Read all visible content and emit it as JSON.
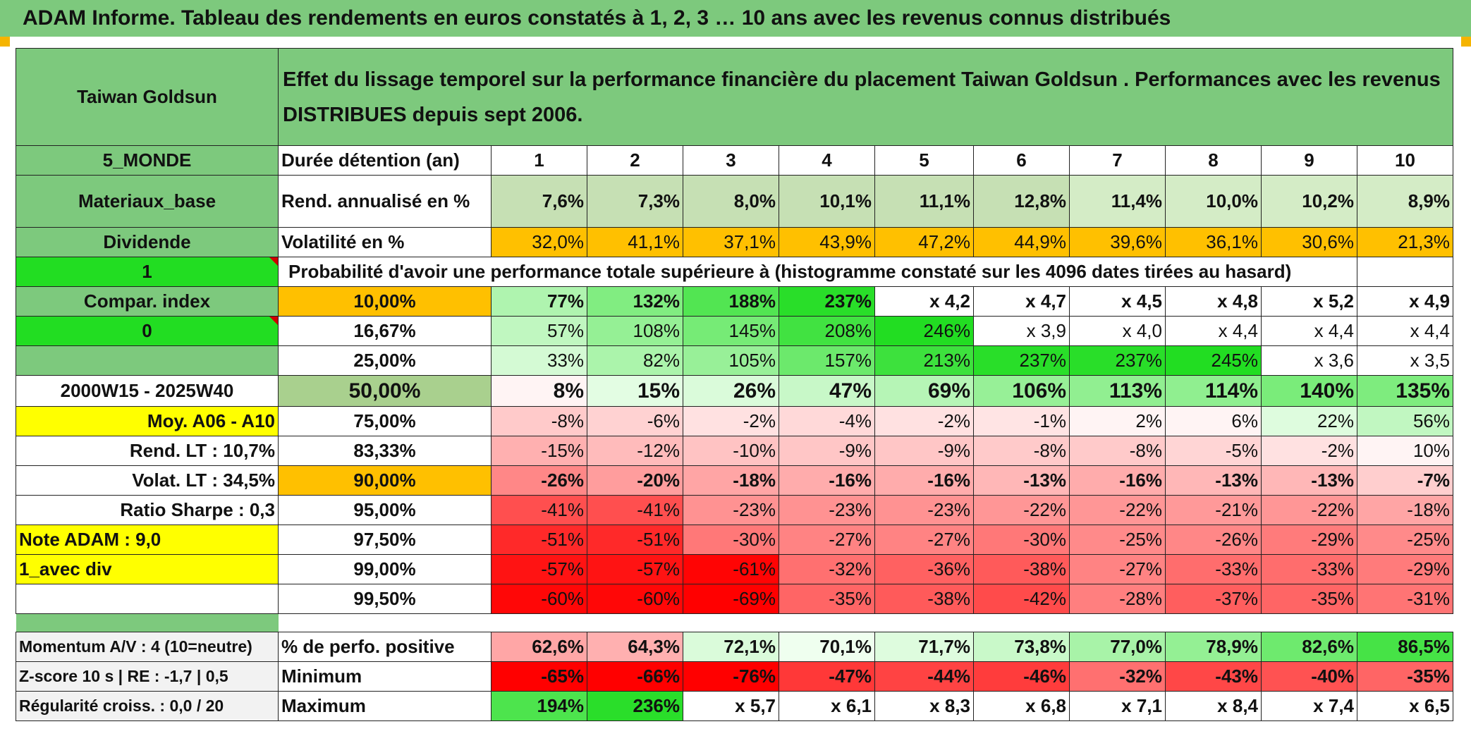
{
  "title": "ADAM Informe. Tableau des rendements en euros constatés à 1, 2, 3 … 10 ans avec les revenus connus distribués",
  "header": {
    "fund_name": "Taiwan Goldsun",
    "description": "Effet du lissage temporel sur la performance financière du placement Taiwan Goldsun . Performances avec les revenus DISTRIBUES depuis sept 2006."
  },
  "left_labels": {
    "region": "5_MONDE",
    "sector": "Materiaux_base",
    "dividend": "Dividende",
    "flag1": "1",
    "compar": "Compar. index",
    "flag0": "0",
    "period": "2000W15 - 2025W40",
    "moy": "Moy. A06 - A10",
    "rend_lt": "Rend. LT :   10,7%",
    "volat_lt": "Volat. LT :   34,5%",
    "sharpe": "Ratio Sharpe :    0,3",
    "note": "Note ADAM : 9,0",
    "avec_div": "1_avec div",
    "momentum": "Momentum A/V : 4 (10=neutre)",
    "zscore": "Z-score 10 s | RE : -1,7 | 0,5",
    "regularite": "Régularité croiss. : 0,0 / 20"
  },
  "duree_label": "Durée détention (an)",
  "years": [
    "1",
    "2",
    "3",
    "4",
    "5",
    "6",
    "7",
    "8",
    "9",
    "10"
  ],
  "rend": {
    "label": "Rend. annualisé en %",
    "values": [
      "7,6%",
      "7,3%",
      "8,0%",
      "10,1%",
      "11,1%",
      "12,8%",
      "11,4%",
      "10,0%",
      "10,2%",
      "8,9%"
    ]
  },
  "vol": {
    "label": "Volatilité en %",
    "values": [
      "32,0%",
      "41,1%",
      "37,1%",
      "43,9%",
      "47,2%",
      "44,9%",
      "39,6%",
      "36,1%",
      "30,6%",
      "21,3%"
    ]
  },
  "proba_label": "Probabilité d'avoir une performance totale supérieure à (histogramme constaté sur les 4096 dates tirées au hasard)",
  "percentiles": [
    {
      "p": "10,00%",
      "values": [
        "77%",
        "132%",
        "188%",
        "237%",
        "x 4,2",
        "x 4,7",
        "x 4,5",
        "x 4,8",
        "x 5,2",
        "x 4,9"
      ]
    },
    {
      "p": "16,67%",
      "values": [
        "57%",
        "108%",
        "145%",
        "208%",
        "246%",
        "x 3,9",
        "x 4,0",
        "x 4,4",
        "x 4,4",
        "x 4,4"
      ]
    },
    {
      "p": "25,00%",
      "values": [
        "33%",
        "82%",
        "105%",
        "157%",
        "213%",
        "237%",
        "237%",
        "245%",
        "x 3,6",
        "x 3,5"
      ]
    },
    {
      "p": "50,00%",
      "values": [
        "8%",
        "15%",
        "26%",
        "47%",
        "69%",
        "106%",
        "113%",
        "114%",
        "140%",
        "135%"
      ]
    },
    {
      "p": "75,00%",
      "values": [
        "-8%",
        "-6%",
        "-2%",
        "-4%",
        "-2%",
        "-1%",
        "2%",
        "6%",
        "22%",
        "56%"
      ]
    },
    {
      "p": "83,33%",
      "values": [
        "-15%",
        "-12%",
        "-10%",
        "-9%",
        "-9%",
        "-8%",
        "-8%",
        "-5%",
        "-2%",
        "10%"
      ]
    },
    {
      "p": "90,00%",
      "values": [
        "-26%",
        "-20%",
        "-18%",
        "-16%",
        "-16%",
        "-13%",
        "-16%",
        "-13%",
        "-13%",
        "-7%"
      ]
    },
    {
      "p": "95,00%",
      "values": [
        "-41%",
        "-41%",
        "-23%",
        "-23%",
        "-23%",
        "-22%",
        "-22%",
        "-21%",
        "-22%",
        "-18%"
      ]
    },
    {
      "p": "97,50%",
      "values": [
        "-51%",
        "-51%",
        "-30%",
        "-27%",
        "-27%",
        "-30%",
        "-25%",
        "-26%",
        "-29%",
        "-25%"
      ]
    },
    {
      "p": "99,00%",
      "values": [
        "-57%",
        "-57%",
        "-61%",
        "-32%",
        "-36%",
        "-38%",
        "-27%",
        "-33%",
        "-33%",
        "-29%"
      ]
    },
    {
      "p": "99,50%",
      "values": [
        "-60%",
        "-60%",
        "-69%",
        "-35%",
        "-38%",
        "-42%",
        "-28%",
        "-37%",
        "-35%",
        "-31%"
      ]
    }
  ],
  "bottom": [
    {
      "label": "% de perfo. positive",
      "values": [
        "62,6%",
        "64,3%",
        "72,1%",
        "70,1%",
        "71,7%",
        "73,8%",
        "77,0%",
        "78,9%",
        "82,6%",
        "86,5%"
      ]
    },
    {
      "label": "Minimum",
      "values": [
        "-65%",
        "-66%",
        "-76%",
        "-47%",
        "-44%",
        "-46%",
        "-32%",
        "-43%",
        "-40%",
        "-35%"
      ]
    },
    {
      "label": "Maximum",
      "values": [
        "194%",
        "236%",
        "x 5,7",
        "x 6,1",
        "x 8,3",
        "x 6,8",
        "x 7,1",
        "x 8,4",
        "x 7,4",
        "x 6,5"
      ]
    }
  ],
  "colors": {
    "header_green": "#7dc97d",
    "bright_green": "#22dd22",
    "orange": "#ffc000",
    "yellow": "#ffff00",
    "red_text": "#d00000",
    "neg_red": "#ff0000"
  }
}
